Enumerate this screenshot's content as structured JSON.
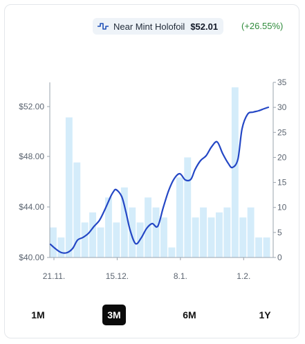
{
  "legend": {
    "icon": "waveform-icon",
    "label": "Near Mint Holofoil",
    "price": "$52.01",
    "change": "(+26.55%)",
    "change_color": "#2e8b3a"
  },
  "range_buttons": [
    {
      "label": "1M",
      "active": false
    },
    {
      "label": "3M",
      "active": true
    },
    {
      "label": "6M",
      "active": false
    },
    {
      "label": "1Y",
      "active": false
    }
  ],
  "chart_data": {
    "type": "bar+line",
    "x_ticks": [
      "21.11.",
      "15.12.",
      "8.1.",
      "1.2."
    ],
    "x_tick_index": [
      0,
      8,
      16,
      24
    ],
    "price_axis": {
      "ticks": [
        "$40.00",
        "$44.00",
        "$48.00",
        "$52.00"
      ],
      "tick_values": [
        40,
        44,
        48,
        52
      ],
      "range": [
        40,
        52
      ]
    },
    "volume_axis": {
      "ticks": [
        "0",
        "5",
        "10",
        "15",
        "20",
        "25",
        "30",
        "35"
      ],
      "tick_values": [
        0,
        5,
        10,
        15,
        20,
        25,
        30,
        35
      ],
      "range": [
        0,
        35
      ]
    },
    "series": [
      {
        "kind": "bar",
        "axis": "right",
        "color": "#d4ecfa",
        "values": [
          6,
          4,
          28,
          19,
          7,
          9,
          6,
          12,
          7,
          14,
          10,
          7,
          12,
          10,
          8,
          2,
          16,
          20,
          8,
          10,
          8,
          9,
          10,
          34,
          8,
          10,
          4,
          4
        ]
      },
      {
        "kind": "line",
        "axis": "left",
        "color": "#2447c5",
        "values": [
          41.1,
          40.4,
          40.5,
          41.5,
          41.8,
          42.5,
          43.6,
          44.1,
          43.2,
          42.7,
          41.0,
          42.2,
          43.0,
          44.4,
          45.4,
          44.3,
          45.1,
          46.5,
          48.5,
          47.6,
          47.9,
          49.0,
          49.5,
          50.4,
          50.6,
          51.4,
          51.7,
          52.0
        ]
      }
    ],
    "line_points": [
      [
        73,
        353
      ],
      [
        81,
        360
      ],
      [
        89,
        365
      ],
      [
        97,
        365
      ],
      [
        105,
        359
      ],
      [
        112,
        347
      ],
      [
        120,
        343
      ],
      [
        128,
        337
      ],
      [
        136,
        327
      ],
      [
        144,
        318
      ],
      [
        152,
        302
      ],
      [
        160,
        284
      ],
      [
        164,
        277
      ],
      [
        168,
        274
      ],
      [
        176,
        284
      ],
      [
        182,
        306
      ],
      [
        188,
        332
      ],
      [
        196,
        352
      ],
      [
        204,
        344
      ],
      [
        212,
        330
      ],
      [
        220,
        323
      ],
      [
        228,
        327
      ],
      [
        236,
        300
      ],
      [
        244,
        275
      ],
      [
        252,
        258
      ],
      [
        260,
        251
      ],
      [
        268,
        260
      ],
      [
        276,
        259
      ],
      [
        282,
        245
      ],
      [
        290,
        232
      ],
      [
        298,
        225
      ],
      [
        306,
        212
      ],
      [
        314,
        205
      ],
      [
        322,
        222
      ],
      [
        330,
        236
      ],
      [
        336,
        242
      ],
      [
        344,
        230
      ],
      [
        350,
        186
      ],
      [
        358,
        165
      ],
      [
        366,
        162
      ],
      [
        374,
        160
      ],
      [
        382,
        157
      ],
      [
        388,
        155
      ]
    ]
  }
}
